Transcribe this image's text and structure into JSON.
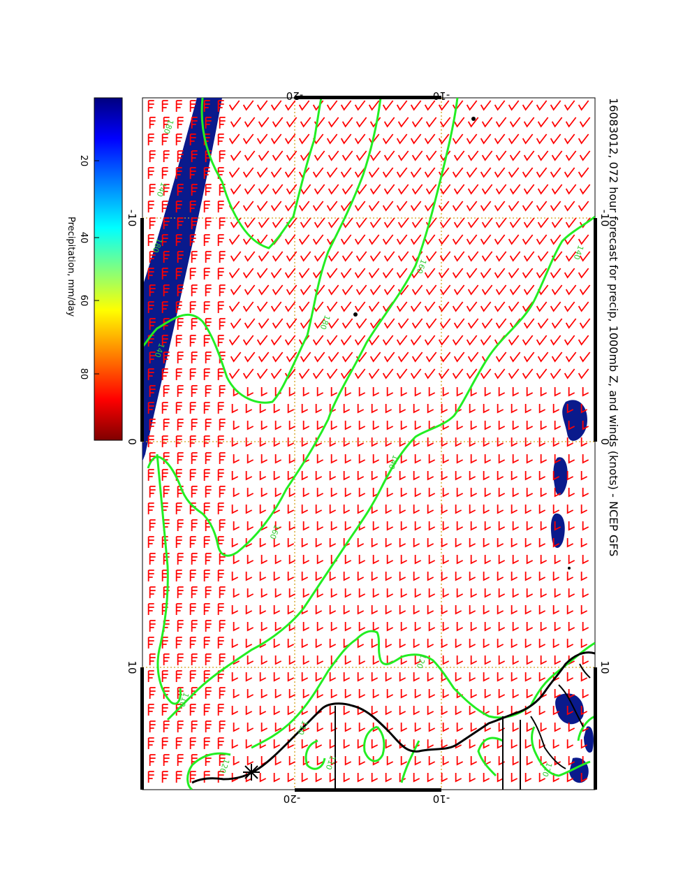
{
  "title": "16083012, 072 hour forecast for precip, 1000mb Z, and winds (knots) - NCEP GFS",
  "colorbar": {
    "label": "Precipitation, mm/day",
    "ticks": [
      "20",
      "40",
      "60",
      "80"
    ],
    "colors": [
      "#7f0000",
      "#ff0000",
      "#ff8000",
      "#ffff00",
      "#80ff80",
      "#00ffff",
      "#0080ff",
      "#0000ff",
      "#00007f"
    ]
  },
  "axes": {
    "top_ticks": [
      "-20",
      "-10"
    ],
    "right_ticks": [
      "-10",
      "0",
      "10"
    ],
    "left_ticks": [
      "-10",
      "0",
      "10"
    ],
    "bottom_ticks": [
      "-20",
      "-10"
    ]
  },
  "contour_labels": [
    "180",
    "140",
    "180",
    "160",
    "180",
    "140",
    "160",
    "140",
    "120",
    "110",
    "120",
    "120",
    "110",
    "140",
    "110"
  ],
  "colors": {
    "barb": "#ff0000",
    "contour": "#22ee22",
    "precip": "#0a1a8c",
    "grid": "#d4a017",
    "coast": "#000000"
  }
}
